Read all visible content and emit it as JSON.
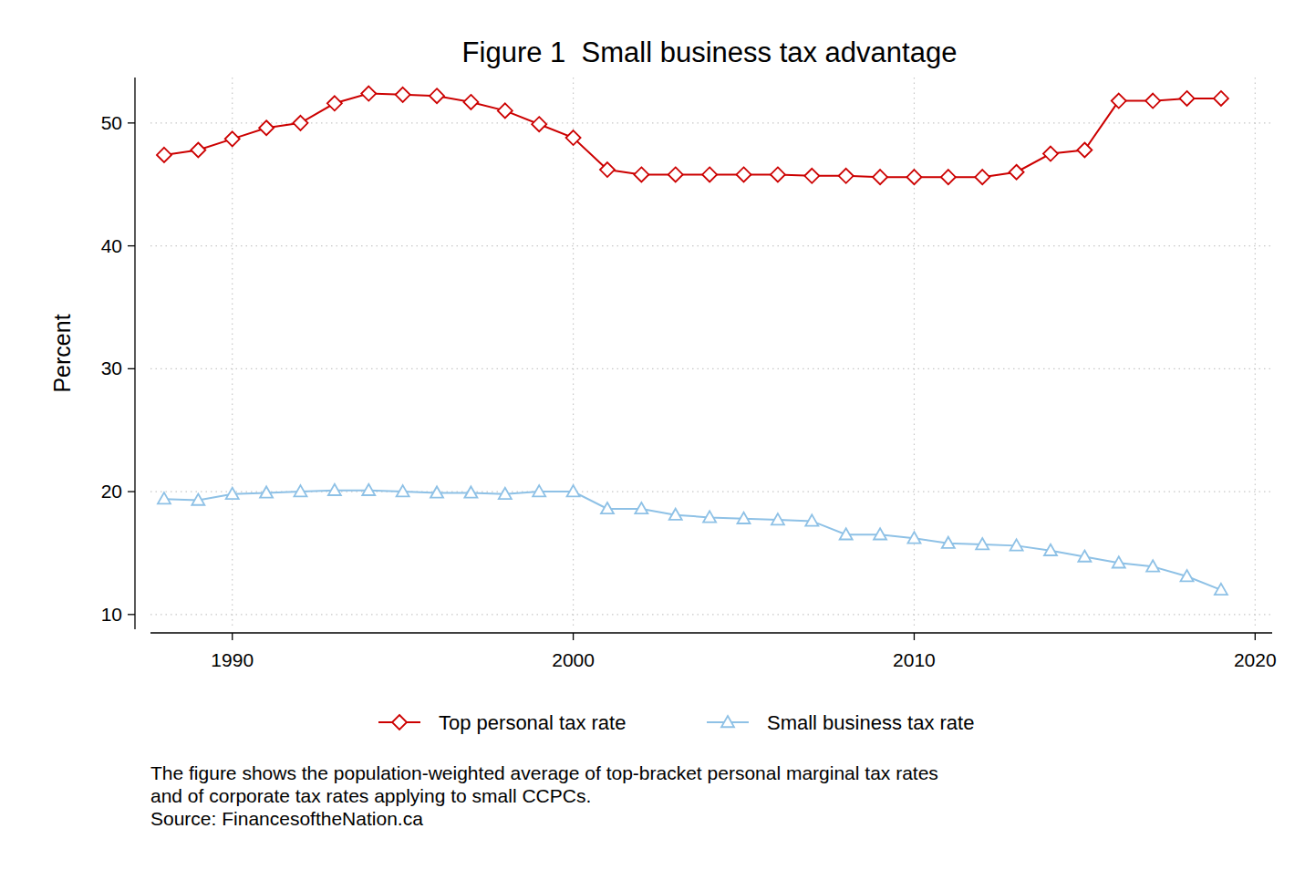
{
  "chart_data": {
    "type": "line",
    "title": "Figure 1  Small business tax advantage",
    "y_label": "Percent",
    "x": [
      1988,
      1989,
      1990,
      1991,
      1992,
      1993,
      1994,
      1995,
      1996,
      1997,
      1998,
      1999,
      2000,
      2001,
      2002,
      2003,
      2004,
      2005,
      2006,
      2007,
      2008,
      2009,
      2010,
      2011,
      2012,
      2013,
      2014,
      2015,
      2016,
      2017,
      2018,
      2019
    ],
    "series": [
      {
        "name": "Top personal tax rate",
        "color": "#cc0000",
        "marker": "diamond",
        "values": [
          47.4,
          47.8,
          48.7,
          49.6,
          50.0,
          51.6,
          52.4,
          52.3,
          52.2,
          51.7,
          51.0,
          49.9,
          48.8,
          46.2,
          45.8,
          45.8,
          45.8,
          45.8,
          45.8,
          45.7,
          45.7,
          45.6,
          45.6,
          45.6,
          45.6,
          46.0,
          47.5,
          47.8,
          51.8,
          51.8,
          52.0,
          52.0
        ]
      },
      {
        "name": "Small business tax rate",
        "color": "#8ec1e6",
        "marker": "triangle",
        "values": [
          19.4,
          19.3,
          19.8,
          19.9,
          20.0,
          20.1,
          20.1,
          20.0,
          19.9,
          19.9,
          19.8,
          20.0,
          20.0,
          18.6,
          18.6,
          18.1,
          17.9,
          17.8,
          17.7,
          17.6,
          16.5,
          16.5,
          16.2,
          15.8,
          15.7,
          15.6,
          15.2,
          14.7,
          14.2,
          13.9,
          13.1,
          12.0
        ]
      }
    ],
    "xlim": [
      1987.6,
      2020.5
    ],
    "xticks": [
      1990,
      2000,
      2010,
      2020
    ],
    "ylim": [
      8.8,
      53.7
    ],
    "yticks": [
      10,
      20,
      30,
      40,
      50
    ],
    "grid": true,
    "legend": "bottom",
    "notes": [
      "The figure shows the population-weighted average of top-bracket personal marginal tax rates",
      "and of corporate tax rates applying to small CCPCs.",
      "Source: FinancesoftheNation.ca"
    ]
  }
}
